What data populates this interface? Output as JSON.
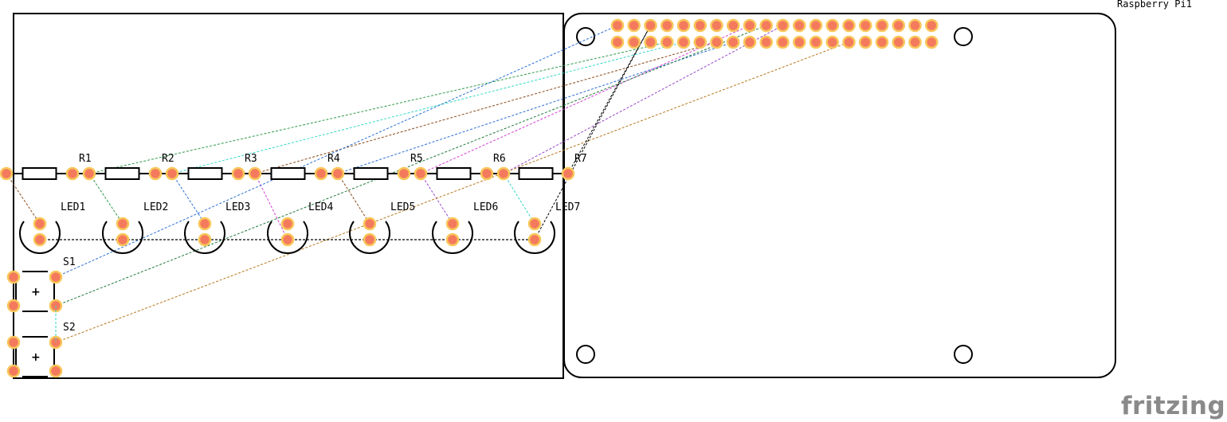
{
  "board": {
    "pi_label": "Raspberry Pi1",
    "logo": "fritzing"
  },
  "resistors": [
    "R1",
    "R2",
    "R3",
    "R4",
    "R5",
    "R6",
    "R7"
  ],
  "leds": [
    "LED1",
    "LED2",
    "LED3",
    "LED4",
    "LED5",
    "LED6",
    "LED7"
  ],
  "switches": [
    {
      "label": "S1",
      "symbol": "+"
    },
    {
      "label": "S2",
      "symbol": "+"
    }
  ],
  "colors": {
    "pad_fill": "#f47a5d",
    "pad_ring": "#f8c75a",
    "outline": "#000000",
    "logo": "#8a8a8a",
    "wire_blue": "#2a6fd6",
    "wire_cyan": "#33d9c6",
    "wire_green": "#2f9a4a",
    "wire_darkgreen": "#1f7a3a",
    "wire_magenta": "#d43fd4",
    "wire_brown": "#8b4a1a",
    "wire_orange": "#b8761a",
    "wire_purple": "#9a49c9",
    "wire_black": "#000000"
  }
}
